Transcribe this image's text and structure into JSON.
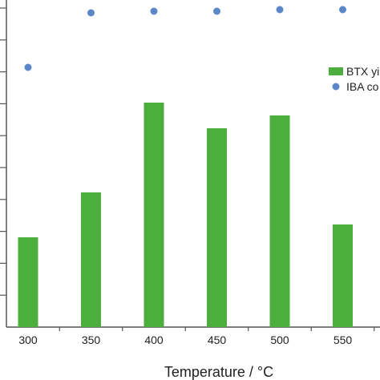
{
  "chart_data": {
    "type": "bar",
    "categories": [
      "300",
      "350",
      "400",
      "450",
      "500",
      "550"
    ],
    "xlabel": "Temperature / °C",
    "series": [
      {
        "name": "BTX yi",
        "kind": "bar",
        "color": "#4cae3c",
        "values": [
          28,
          42,
          70,
          62,
          66,
          32
        ]
      },
      {
        "name": "IBA co",
        "kind": "scatter",
        "color": "#5b87c9",
        "values": [
          81,
          98,
          98.5,
          98.5,
          99,
          99
        ]
      }
    ],
    "ylim": [
      0,
      102
    ],
    "y_tick_count": 10,
    "grid": false,
    "legend_position": "right"
  }
}
